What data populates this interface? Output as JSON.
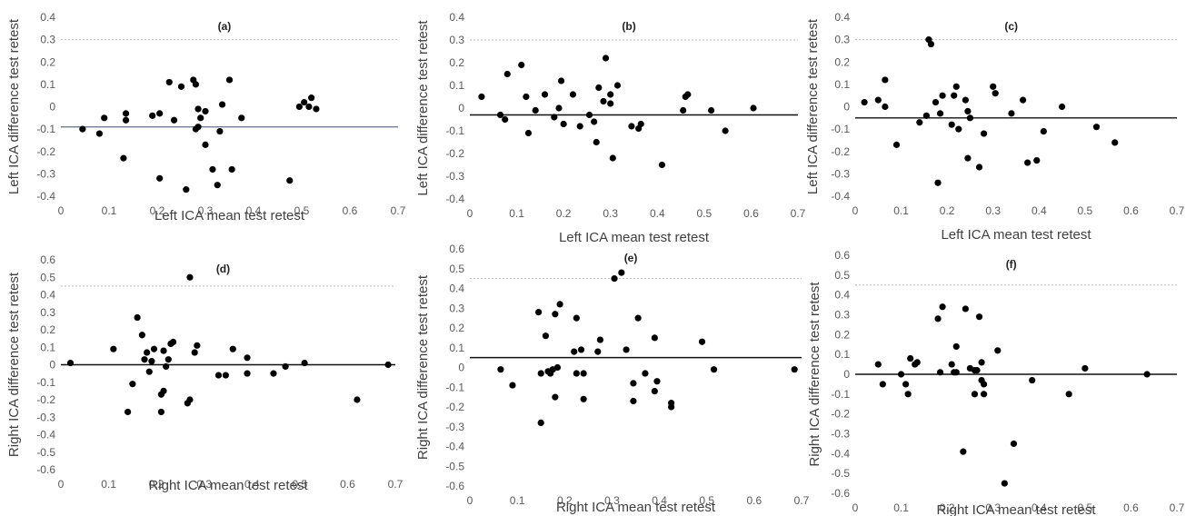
{
  "chart_data": [
    {
      "type": "scatter",
      "panel_label": "(a)",
      "xlabel": "Left ICA mean test retest",
      "ylabel": "Left ICA difference test retest",
      "xlim": [
        0,
        0.7
      ],
      "ylim": [
        -0.4,
        0.4
      ],
      "xticks": [
        "0",
        "0.1",
        "0.2",
        "0.3",
        "0.4",
        "0.5",
        "0.6",
        "0.7"
      ],
      "yticks": [
        "-0.4",
        "-0.3",
        "-0.2",
        "-0.1",
        "0",
        "0.1",
        "0.2",
        "0.3",
        "0.4"
      ],
      "mean_line": -0.09,
      "mean_line_color": "#6e7f93",
      "grid": "dotted horizontal at upper level",
      "points": [
        [
          0.045,
          -0.1
        ],
        [
          0.08,
          -0.12
        ],
        [
          0.09,
          -0.05
        ],
        [
          0.13,
          -0.23
        ],
        [
          0.135,
          -0.06
        ],
        [
          0.135,
          -0.03
        ],
        [
          0.19,
          -0.04
        ],
        [
          0.205,
          -0.03
        ],
        [
          0.205,
          -0.32
        ],
        [
          0.225,
          0.11
        ],
        [
          0.235,
          -0.06
        ],
        [
          0.25,
          0.09
        ],
        [
          0.26,
          -0.37
        ],
        [
          0.275,
          0.12
        ],
        [
          0.28,
          0.1
        ],
        [
          0.28,
          -0.1
        ],
        [
          0.285,
          -0.09
        ],
        [
          0.285,
          -0.01
        ],
        [
          0.29,
          -0.05
        ],
        [
          0.3,
          -0.02
        ],
        [
          0.3,
          -0.17
        ],
        [
          0.315,
          -0.28
        ],
        [
          0.325,
          -0.35
        ],
        [
          0.33,
          -0.11
        ],
        [
          0.335,
          0.01
        ],
        [
          0.35,
          0.12
        ],
        [
          0.355,
          -0.28
        ],
        [
          0.375,
          -0.05
        ],
        [
          0.475,
          -0.33
        ],
        [
          0.495,
          0.0
        ],
        [
          0.505,
          0.02
        ],
        [
          0.515,
          0.0
        ],
        [
          0.52,
          0.04
        ],
        [
          0.53,
          -0.01
        ]
      ]
    },
    {
      "type": "scatter",
      "panel_label": "(b)",
      "xlabel": "Left ICA mean test retest",
      "ylabel": "Left ICA difference test retest",
      "xlim": [
        0,
        0.7
      ],
      "ylim": [
        -0.4,
        0.4
      ],
      "xticks": [
        "0",
        "0.1",
        "0.2",
        "0.3",
        "0.4",
        "0.5",
        "0.6",
        "0.7"
      ],
      "yticks": [
        "-0.4",
        "-0.3",
        "-0.2",
        "-0.1",
        "0",
        "0.1",
        "0.2",
        "0.3",
        "0.4"
      ],
      "mean_line": -0.03,
      "mean_line_color": "#111111",
      "grid": "dotted horizontal at upper level",
      "points": [
        [
          0.025,
          0.05
        ],
        [
          0.065,
          -0.03
        ],
        [
          0.075,
          -0.05
        ],
        [
          0.08,
          0.15
        ],
        [
          0.11,
          0.19
        ],
        [
          0.12,
          0.05
        ],
        [
          0.125,
          -0.11
        ],
        [
          0.14,
          -0.01
        ],
        [
          0.16,
          0.06
        ],
        [
          0.18,
          -0.04
        ],
        [
          0.19,
          0.0
        ],
        [
          0.195,
          0.12
        ],
        [
          0.2,
          -0.07
        ],
        [
          0.22,
          0.06
        ],
        [
          0.235,
          -0.08
        ],
        [
          0.255,
          -0.03
        ],
        [
          0.265,
          -0.06
        ],
        [
          0.27,
          -0.15
        ],
        [
          0.275,
          0.09
        ],
        [
          0.285,
          0.03
        ],
        [
          0.29,
          0.22
        ],
        [
          0.3,
          0.06
        ],
        [
          0.3,
          0.02
        ],
        [
          0.305,
          -0.22
        ],
        [
          0.315,
          0.1
        ],
        [
          0.345,
          -0.08
        ],
        [
          0.36,
          -0.09
        ],
        [
          0.365,
          -0.07
        ],
        [
          0.41,
          -0.25
        ],
        [
          0.455,
          -0.01
        ],
        [
          0.46,
          0.05
        ],
        [
          0.465,
          0.06
        ],
        [
          0.515,
          -0.01
        ],
        [
          0.545,
          -0.1
        ],
        [
          0.605,
          0.0
        ]
      ]
    },
    {
      "type": "scatter",
      "panel_label": "(c)",
      "xlabel": "Left ICA mean test retest",
      "ylabel": "Left ICA difference test retest",
      "xlim": [
        0,
        0.7
      ],
      "ylim": [
        -0.4,
        0.4
      ],
      "xticks": [
        "0",
        "0.1",
        "0.2",
        "0.3",
        "0.4",
        "0.5",
        "0.6",
        "0.7"
      ],
      "yticks": [
        "-0.4",
        "-0.3",
        "-0.2",
        "-0.1",
        "0",
        "0.1",
        "0.2",
        "0.3",
        "0.4"
      ],
      "mean_line": -0.05,
      "mean_line_color": "#111111",
      "grid": "dotted horizontal at upper level",
      "points": [
        [
          0.02,
          0.02
        ],
        [
          0.05,
          0.03
        ],
        [
          0.065,
          0.12
        ],
        [
          0.065,
          0.0
        ],
        [
          0.09,
          -0.17
        ],
        [
          0.14,
          -0.07
        ],
        [
          0.155,
          -0.04
        ],
        [
          0.16,
          0.3
        ],
        [
          0.165,
          0.28
        ],
        [
          0.175,
          0.02
        ],
        [
          0.18,
          -0.34
        ],
        [
          0.185,
          -0.03
        ],
        [
          0.19,
          0.05
        ],
        [
          0.21,
          -0.08
        ],
        [
          0.215,
          0.05
        ],
        [
          0.22,
          0.09
        ],
        [
          0.225,
          -0.1
        ],
        [
          0.24,
          0.03
        ],
        [
          0.245,
          -0.02
        ],
        [
          0.245,
          -0.23
        ],
        [
          0.25,
          -0.05
        ],
        [
          0.27,
          -0.27
        ],
        [
          0.28,
          -0.12
        ],
        [
          0.3,
          0.09
        ],
        [
          0.305,
          0.06
        ],
        [
          0.34,
          -0.03
        ],
        [
          0.365,
          0.03
        ],
        [
          0.375,
          -0.25
        ],
        [
          0.395,
          -0.24
        ],
        [
          0.41,
          -0.11
        ],
        [
          0.45,
          0.0
        ],
        [
          0.525,
          -0.09
        ],
        [
          0.565,
          -0.16
        ]
      ]
    },
    {
      "type": "scatter",
      "panel_label": "(d)",
      "xlabel": "Right ICA mean test retest",
      "ylabel": "Right ICA difference test retest",
      "xlim": [
        0,
        0.7
      ],
      "ylim": [
        -0.6,
        0.6
      ],
      "xticks": [
        "0",
        "0.1",
        "0.2",
        "0.3",
        "0.4",
        "0.5",
        "0.6",
        "0.7"
      ],
      "yticks": [
        "-0.6",
        "-0.5",
        "-0.4",
        "-0.3",
        "-0.2",
        "-0.1",
        "0",
        "0.1",
        "0.2",
        "0.3",
        "0.4",
        "0.5",
        "0.6"
      ],
      "mean_line": 0.0,
      "mean_line_color": "#111111",
      "grid": "dotted horizontal at upper level",
      "points": [
        [
          0.02,
          0.01
        ],
        [
          0.11,
          0.09
        ],
        [
          0.14,
          -0.27
        ],
        [
          0.15,
          -0.11
        ],
        [
          0.16,
          0.27
        ],
        [
          0.17,
          0.17
        ],
        [
          0.175,
          0.03
        ],
        [
          0.18,
          0.07
        ],
        [
          0.185,
          -0.04
        ],
        [
          0.19,
          0.02
        ],
        [
          0.195,
          0.09
        ],
        [
          0.21,
          -0.17
        ],
        [
          0.21,
          -0.27
        ],
        [
          0.215,
          -0.15
        ],
        [
          0.215,
          0.08
        ],
        [
          0.22,
          -0.01
        ],
        [
          0.225,
          0.03
        ],
        [
          0.23,
          0.12
        ],
        [
          0.235,
          0.13
        ],
        [
          0.265,
          -0.22
        ],
        [
          0.27,
          -0.2
        ],
        [
          0.27,
          0.5
        ],
        [
          0.28,
          0.07
        ],
        [
          0.285,
          0.11
        ],
        [
          0.33,
          -0.06
        ],
        [
          0.345,
          -0.06
        ],
        [
          0.36,
          0.09
        ],
        [
          0.39,
          0.04
        ],
        [
          0.39,
          -0.05
        ],
        [
          0.445,
          -0.05
        ],
        [
          0.47,
          -0.01
        ],
        [
          0.51,
          0.01
        ],
        [
          0.62,
          -0.2
        ],
        [
          0.685,
          0.0
        ]
      ]
    },
    {
      "type": "scatter",
      "panel_label": "(e)",
      "xlabel": "Right ICA mean test retest",
      "ylabel": "Right ICA difference test retest",
      "xlim": [
        0,
        0.7
      ],
      "ylim": [
        -0.6,
        0.6
      ],
      "xticks": [
        "0",
        "0.1",
        "0.2",
        "0.3",
        "0.4",
        "0.5",
        "0.6",
        "0.7"
      ],
      "yticks": [
        "-0.6",
        "-0.5",
        "-0.4",
        "-0.3",
        "-0.2",
        "-0.1",
        "0",
        "0.1",
        "0.2",
        "0.3",
        "0.4",
        "0.5",
        "0.6"
      ],
      "mean_line": 0.05,
      "mean_line_color": "#111111",
      "grid": "dotted horizontal at upper level",
      "points": [
        [
          0.065,
          -0.01
        ],
        [
          0.09,
          -0.09
        ],
        [
          0.145,
          0.28
        ],
        [
          0.15,
          -0.03
        ],
        [
          0.15,
          -0.28
        ],
        [
          0.16,
          0.16
        ],
        [
          0.165,
          -0.02
        ],
        [
          0.17,
          -0.03
        ],
        [
          0.175,
          -0.01
        ],
        [
          0.18,
          0.27
        ],
        [
          0.18,
          -0.15
        ],
        [
          0.185,
          0.0
        ],
        [
          0.19,
          0.32
        ],
        [
          0.22,
          0.08
        ],
        [
          0.225,
          0.25
        ],
        [
          0.225,
          -0.03
        ],
        [
          0.235,
          0.09
        ],
        [
          0.24,
          -0.03
        ],
        [
          0.24,
          -0.16
        ],
        [
          0.27,
          0.08
        ],
        [
          0.275,
          0.14
        ],
        [
          0.305,
          0.45
        ],
        [
          0.32,
          0.48
        ],
        [
          0.33,
          0.09
        ],
        [
          0.345,
          -0.08
        ],
        [
          0.345,
          -0.17
        ],
        [
          0.355,
          0.25
        ],
        [
          0.37,
          -0.03
        ],
        [
          0.39,
          0.15
        ],
        [
          0.39,
          -0.12
        ],
        [
          0.395,
          -0.07
        ],
        [
          0.425,
          -0.18
        ],
        [
          0.425,
          -0.2
        ],
        [
          0.49,
          0.13
        ],
        [
          0.515,
          -0.01
        ],
        [
          0.685,
          -0.01
        ]
      ]
    },
    {
      "type": "scatter",
      "panel_label": "(f)",
      "xlabel": "Right ICA mean test retest",
      "ylabel": "Right ICA difference test retest",
      "xlim": [
        0,
        0.7
      ],
      "ylim": [
        -0.6,
        0.6
      ],
      "xticks": [
        "0",
        "0.1",
        "0.2",
        "0.3",
        "0.4",
        "0.5",
        "0.6",
        "0.7"
      ],
      "yticks": [
        "-0.6",
        "-0.5",
        "-0.4",
        "-0.3",
        "-0.2",
        "-0.1",
        "0",
        "0.1",
        "0.2",
        "0.3",
        "0.4",
        "0.5",
        "0.6"
      ],
      "mean_line": 0.0,
      "mean_line_color": "#111111",
      "grid": "dotted horizontal at upper level",
      "points": [
        [
          0.05,
          0.05
        ],
        [
          0.06,
          -0.05
        ],
        [
          0.1,
          0.0
        ],
        [
          0.11,
          -0.05
        ],
        [
          0.115,
          -0.1
        ],
        [
          0.12,
          0.08
        ],
        [
          0.13,
          0.05
        ],
        [
          0.135,
          0.06
        ],
        [
          0.18,
          0.28
        ],
        [
          0.185,
          0.01
        ],
        [
          0.19,
          0.34
        ],
        [
          0.21,
          0.05
        ],
        [
          0.215,
          0.01
        ],
        [
          0.22,
          0.14
        ],
        [
          0.22,
          0.01
        ],
        [
          0.235,
          -0.39
        ],
        [
          0.24,
          0.33
        ],
        [
          0.25,
          0.03
        ],
        [
          0.26,
          0.02
        ],
        [
          0.26,
          -0.1
        ],
        [
          0.265,
          0.02
        ],
        [
          0.27,
          0.29
        ],
        [
          0.275,
          -0.03
        ],
        [
          0.275,
          0.06
        ],
        [
          0.28,
          -0.05
        ],
        [
          0.28,
          -0.1
        ],
        [
          0.31,
          0.12
        ],
        [
          0.325,
          -0.55
        ],
        [
          0.345,
          -0.35
        ],
        [
          0.385,
          -0.03
        ],
        [
          0.465,
          -0.1
        ],
        [
          0.5,
          0.03
        ],
        [
          0.635,
          0.0
        ]
      ]
    }
  ]
}
